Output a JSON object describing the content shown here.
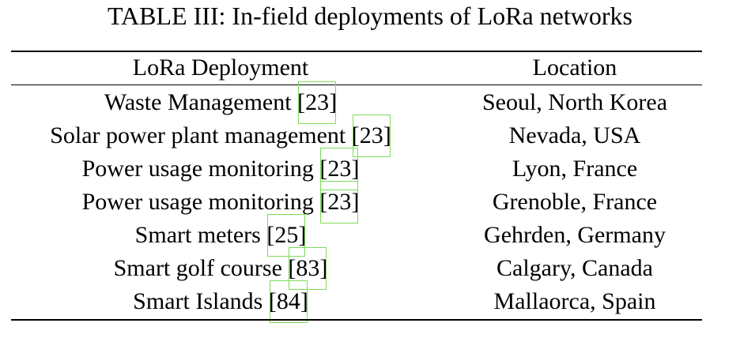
{
  "table": {
    "caption": "TABLE III: In-field deployments of LoRa networks",
    "headers": [
      "LoRa Deployment",
      "Location"
    ],
    "rows": [
      {
        "deployment": "Waste Management",
        "ref": "23",
        "location": "Seoul, North Korea"
      },
      {
        "deployment": "Solar power plant management",
        "ref": "23",
        "location": "Nevada, USA"
      },
      {
        "deployment": "Power usage monitoring",
        "ref": "23",
        "location": "Lyon, France"
      },
      {
        "deployment": "Power usage monitoring",
        "ref": "23",
        "location": "Grenoble, France"
      },
      {
        "deployment": "Smart meters",
        "ref": "25",
        "location": "Gehrden, Germany"
      },
      {
        "deployment": "Smart golf course",
        "ref": "83",
        "location": "Calgary, Canada"
      },
      {
        "deployment": "Smart Islands",
        "ref": "84",
        "location": "Mallaorca, Spain"
      }
    ]
  }
}
